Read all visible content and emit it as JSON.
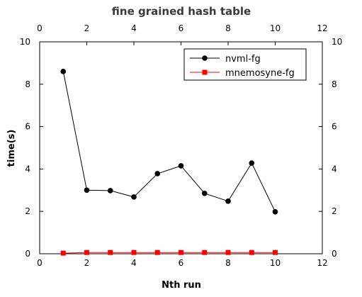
{
  "chart_data": {
    "type": "line",
    "title": "fine grained hash table",
    "xlabel": "Nth run",
    "ylabel": "time(s)",
    "xlim": [
      0,
      12
    ],
    "ylim": [
      0,
      10
    ],
    "xticks": [
      0,
      2,
      4,
      6,
      8,
      10,
      12
    ],
    "yticks": [
      0,
      2,
      4,
      6,
      8,
      10
    ],
    "grid": false,
    "legend_position": "top-right",
    "x": [
      1,
      2,
      3,
      4,
      5,
      6,
      7,
      8,
      9,
      10
    ],
    "series": [
      {
        "name": "nvml-fg",
        "color": "#000000",
        "marker": "circle",
        "values": [
          8.6,
          3.0,
          2.98,
          2.68,
          3.78,
          4.15,
          2.85,
          2.48,
          4.28,
          1.98
        ]
      },
      {
        "name": "mnemosyne-fg",
        "color": "#ff0000",
        "marker": "square",
        "values": [
          0.03,
          0.06,
          0.06,
          0.06,
          0.06,
          0.06,
          0.06,
          0.06,
          0.06,
          0.06
        ]
      }
    ]
  }
}
